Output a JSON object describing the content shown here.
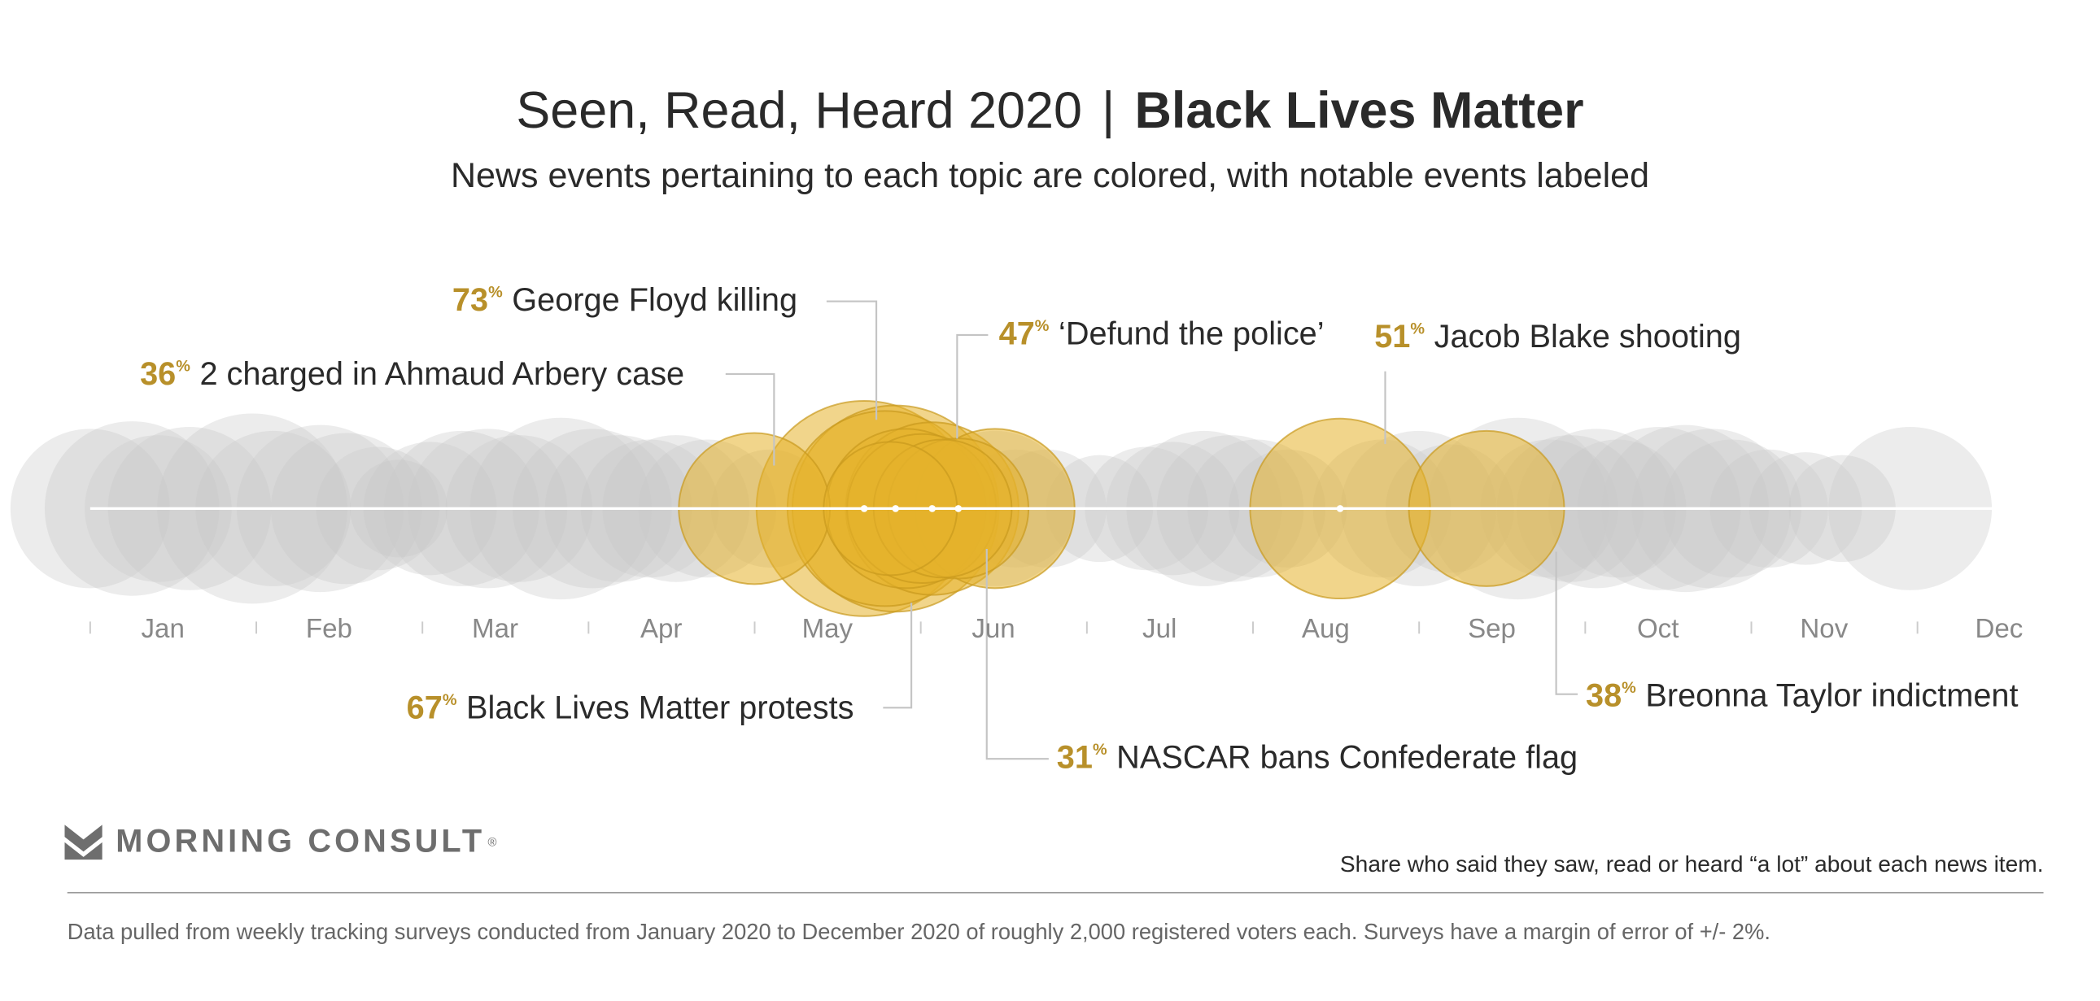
{
  "header": {
    "title_main": "Seen, Read, Heard 2020",
    "title_separator": "|",
    "title_topic": "Black Lives Matter",
    "subtitle": "News events pertaining to each topic are colored, with notable events labeled"
  },
  "colors": {
    "highlight_fill": "#e5b22b",
    "highlight_stroke": "#c99a1e",
    "background_bubble": "#c8c8c8",
    "label_accent": "#b8902a",
    "axis_text": "#888888",
    "baseline": "#ffffff"
  },
  "chart_data": {
    "type": "bubble-timeline",
    "x_axis": {
      "ticks": [
        "Jan",
        "Feb",
        "Mar",
        "Apr",
        "May",
        "Jun",
        "Jul",
        "Aug",
        "Sep",
        "Oct",
        "Nov",
        "Dec"
      ],
      "range": [
        "2020-01-01",
        "2020-12-31"
      ]
    },
    "size_metric": "Share who said they saw, read or heard “a lot” about each news item.",
    "highlighted_events": [
      {
        "label": "2 charged in Ahmaud Arbery case",
        "percent": 36,
        "date": "2020-05-07"
      },
      {
        "label": "George Floyd killing",
        "percent": 73,
        "date": "2020-05-28"
      },
      {
        "label": "Black Lives Matter protests",
        "percent": 67,
        "date": "2020-06-03"
      },
      {
        "label": "‘Defund the police’",
        "percent": 47,
        "date": "2020-06-10"
      },
      {
        "label": "NASCAR bans Confederate flag",
        "percent": 31,
        "date": "2020-06-15"
      },
      {
        "label": "Jacob Blake shooting",
        "percent": 51,
        "date": "2020-08-27"
      },
      {
        "label": "Breonna Taylor indictment",
        "percent": 38,
        "date": "2020-09-24"
      }
    ],
    "unlabeled_highlighted_events": [
      {
        "percent": 40,
        "date": "2020-06-05"
      },
      {
        "percent": 35,
        "date": "2020-06-08"
      },
      {
        "percent": 30,
        "date": "2020-06-12"
      },
      {
        "percent": 40,
        "date": "2020-06-22"
      },
      {
        "percent": 28,
        "date": "2020-06-02"
      },
      {
        "percent": 60,
        "date": "2020-06-01"
      }
    ],
    "other_events": [
      {
        "percent": 40,
        "date": "2020-01-01"
      },
      {
        "percent": 48,
        "date": "2020-01-09"
      },
      {
        "percent": 34,
        "date": "2020-01-14"
      },
      {
        "percent": 42,
        "date": "2020-01-20"
      },
      {
        "percent": 57,
        "date": "2020-02-01"
      },
      {
        "percent": 38,
        "date": "2020-02-05"
      },
      {
        "percent": 44,
        "date": "2020-02-14"
      },
      {
        "percent": 36,
        "date": "2020-02-19"
      },
      {
        "percent": 24,
        "date": "2020-02-25"
      },
      {
        "percent": 15,
        "date": "2020-02-29"
      },
      {
        "percent": 28,
        "date": "2020-03-06"
      },
      {
        "percent": 38,
        "date": "2020-03-12"
      },
      {
        "percent": 40,
        "date": "2020-03-17"
      },
      {
        "percent": 34,
        "date": "2020-03-23"
      },
      {
        "percent": 52,
        "date": "2020-03-31"
      },
      {
        "percent": 40,
        "date": "2020-04-06"
      },
      {
        "percent": 34,
        "date": "2020-04-11"
      },
      {
        "percent": 30,
        "date": "2020-04-17"
      },
      {
        "percent": 34,
        "date": "2020-04-22"
      },
      {
        "percent": 30,
        "date": "2020-04-28"
      },
      {
        "percent": 22,
        "date": "2020-05-10"
      },
      {
        "percent": 38,
        "date": "2020-06-22"
      },
      {
        "percent": 22,
        "date": "2020-06-26"
      },
      {
        "percent": 22,
        "date": "2020-07-02"
      },
      {
        "percent": 18,
        "date": "2020-07-12"
      },
      {
        "percent": 24,
        "date": "2020-07-21"
      },
      {
        "percent": 28,
        "date": "2020-07-26"
      },
      {
        "percent": 38,
        "date": "2020-08-01"
      },
      {
        "percent": 34,
        "date": "2020-08-06"
      },
      {
        "percent": 30,
        "date": "2020-08-11"
      },
      {
        "percent": 22,
        "date": "2020-08-17"
      },
      {
        "percent": 30,
        "date": "2020-09-04"
      },
      {
        "percent": 38,
        "date": "2020-09-11"
      },
      {
        "percent": 26,
        "date": "2020-09-17"
      },
      {
        "percent": 52,
        "date": "2020-09-30"
      },
      {
        "percent": 30,
        "date": "2020-10-06"
      },
      {
        "percent": 34,
        "date": "2020-10-10"
      },
      {
        "percent": 40,
        "date": "2020-10-15"
      },
      {
        "percent": 30,
        "date": "2020-10-19"
      },
      {
        "percent": 42,
        "date": "2020-10-27"
      },
      {
        "percent": 44,
        "date": "2020-11-01"
      },
      {
        "percent": 40,
        "date": "2020-11-06"
      },
      {
        "percent": 30,
        "date": "2020-11-10"
      },
      {
        "percent": 22,
        "date": "2020-11-17"
      },
      {
        "percent": 20,
        "date": "2020-11-24"
      },
      {
        "percent": 18,
        "date": "2020-12-01"
      },
      {
        "percent": 42,
        "date": "2020-12-14"
      }
    ]
  },
  "footer": {
    "logo_text": "MORNING CONSULT",
    "logo_mark": "registered-mark",
    "share_note": "Share who said they saw, read or heard “a lot” about each news item.",
    "source_note": "Data pulled from weekly tracking surveys conducted from January 2020 to December 2020 of roughly 2,000 registered voters each. Surveys have a margin of error of +/- 2%."
  }
}
